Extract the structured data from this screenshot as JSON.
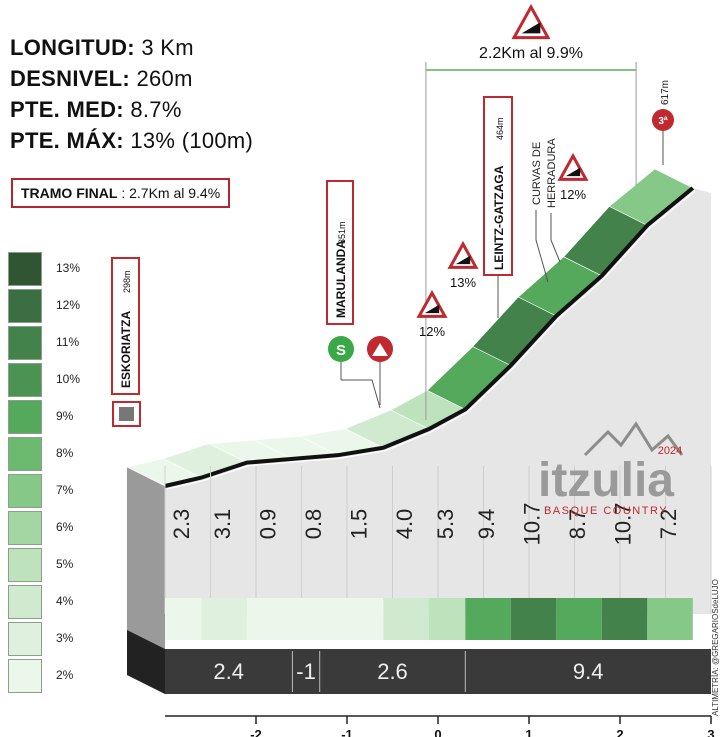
{
  "stats": [
    {
      "label": "LONGITUD:",
      "value": "3 Km"
    },
    {
      "label": "DESNIVEL:",
      "value": "260m"
    },
    {
      "label": "PTE. MED:",
      "value": "8.7%"
    },
    {
      "label": "PTE. MÁX:",
      "value": "13% (100m)"
    }
  ],
  "final_section": {
    "label": "TRAMO FINAL",
    "value": ": 2.7Km al 9.4%"
  },
  "legend": [
    {
      "label": "13%",
      "color": "#2f5533"
    },
    {
      "label": "12%",
      "color": "#3b6e40"
    },
    {
      "label": "11%",
      "color": "#43824a"
    },
    {
      "label": "10%",
      "color": "#4a9352"
    },
    {
      "label": "9%",
      "color": "#55a95c"
    },
    {
      "label": "8%",
      "color": "#6bba6f"
    },
    {
      "label": "7%",
      "color": "#85c887"
    },
    {
      "label": "6%",
      "color": "#a3d6a3"
    },
    {
      "label": "5%",
      "color": "#bde2bc"
    },
    {
      "label": "4%",
      "color": "#cfeace"
    },
    {
      "label": "3%",
      "color": "#dff1de"
    },
    {
      "label": "2%",
      "color": "#ecf7eb"
    }
  ],
  "chart_data": {
    "type": "area",
    "title": "",
    "xlabel": "",
    "ylabel": "",
    "xlim": [
      -3,
      3
    ],
    "x_ticks": [
      -2,
      -1,
      0,
      1,
      2,
      3
    ],
    "segment_gradients": [
      {
        "from": -3.0,
        "to": -2.6,
        "value": "2.3"
      },
      {
        "from": -2.6,
        "to": -2.1,
        "value": "3.1"
      },
      {
        "from": -2.1,
        "to": -1.6,
        "value": "0.9"
      },
      {
        "from": -1.6,
        "to": -1.1,
        "value": "0.8"
      },
      {
        "from": -1.1,
        "to": -0.6,
        "value": "1.5"
      },
      {
        "from": -0.6,
        "to": -0.1,
        "value": "4.0"
      },
      {
        "from": -0.1,
        "to": 0.3,
        "value": "5.3"
      },
      {
        "from": 0.3,
        "to": 0.8,
        "value": "9.4"
      },
      {
        "from": 0.8,
        "to": 1.3,
        "value": "10.7"
      },
      {
        "from": 1.3,
        "to": 1.8,
        "value": "8.7"
      },
      {
        "from": 1.8,
        "to": 2.3,
        "value": "10.7"
      },
      {
        "from": 2.3,
        "to": 2.8,
        "value": "7.2"
      }
    ],
    "km_averages": [
      {
        "from": -3.0,
        "to": -1.6,
        "value": "2.4"
      },
      {
        "from": -1.6,
        "to": -1.3,
        "value": "-1"
      },
      {
        "from": -1.3,
        "to": 0.3,
        "value": "2.6"
      },
      {
        "from": 0.3,
        "to": 3.0,
        "value": "9.4"
      }
    ],
    "profile": [
      {
        "x": -3.0,
        "y": 298
      },
      {
        "x": -2.6,
        "y": 307
      },
      {
        "x": -2.1,
        "y": 323
      },
      {
        "x": -1.6,
        "y": 327
      },
      {
        "x": -1.1,
        "y": 331
      },
      {
        "x": -0.6,
        "y": 339
      },
      {
        "x": -0.1,
        "y": 359
      },
      {
        "x": 0.3,
        "y": 380
      },
      {
        "x": 0.8,
        "y": 427
      },
      {
        "x": 1.3,
        "y": 480
      },
      {
        "x": 1.8,
        "y": 523
      },
      {
        "x": 2.3,
        "y": 577
      },
      {
        "x": 2.8,
        "y": 617
      }
    ],
    "ylim": [
      240,
      640
    ],
    "locations": [
      {
        "name": "ESKORIATZA",
        "elevation": "298m",
        "x": -3.0
      },
      {
        "name": "MARULANDA",
        "elevation": "351m",
        "x": -0.85
      },
      {
        "name": "LEINTZ-GATZAGA",
        "elevation": "464m",
        "x": 0.75
      },
      {
        "name": "",
        "elevation": "617m",
        "x": 2.6
      }
    ],
    "annotations": [
      {
        "text": "CURVAS DE",
        "text2": "HERRADURA"
      },
      {
        "text": "12%",
        "x": 0.1
      },
      {
        "text": "13%",
        "x": 0.45
      },
      {
        "text": "12%",
        "x": 1.55
      }
    ],
    "steep_section": {
      "text": "2.2Km al 9.9%",
      "from": -0.1,
      "to": 2.1
    },
    "markers": {
      "sprint": "S",
      "summit_category": "3ª"
    }
  },
  "branding": {
    "logo": "itzulia",
    "year": "2024",
    "subtitle": "BASQUE COUNTRY",
    "credit": "ALTIMETRÍA: @GREGARIOSdeLUJO"
  }
}
